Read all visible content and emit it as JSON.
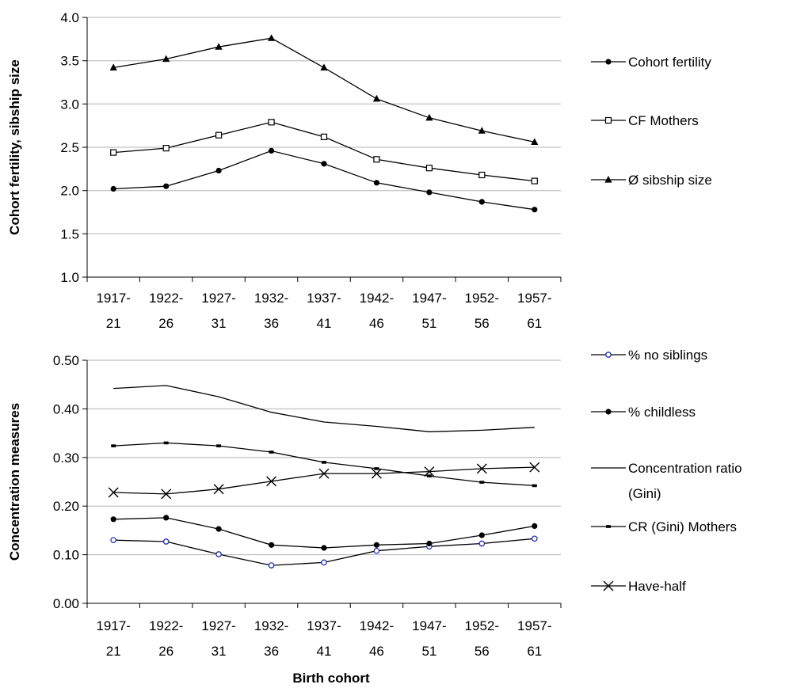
{
  "chart_data": [
    {
      "type": "line",
      "title": "",
      "xlabel": "",
      "ylabel": "Cohort fertility, sibship size",
      "ylim": [
        1.0,
        4.0
      ],
      "yticks": [
        "1.0",
        "1.5",
        "2.0",
        "2.5",
        "3.0",
        "3.5",
        "4.0"
      ],
      "grid": true,
      "legend_position": "right",
      "categories": [
        [
          "1917-",
          "21"
        ],
        [
          "1922-",
          "26"
        ],
        [
          "1927-",
          "31"
        ],
        [
          "1932-",
          "36"
        ],
        [
          "1937-",
          "41"
        ],
        [
          "1942-",
          "46"
        ],
        [
          "1947-",
          "51"
        ],
        [
          "1952-",
          "56"
        ],
        [
          "1957-",
          "61"
        ]
      ],
      "series": [
        {
          "name": "Cohort fertility",
          "marker": "filled-circle",
          "values": [
            2.02,
            2.05,
            2.23,
            2.46,
            2.31,
            2.09,
            1.98,
            1.87,
            1.78
          ]
        },
        {
          "name": "CF Mothers",
          "marker": "open-square",
          "values": [
            2.44,
            2.49,
            2.64,
            2.79,
            2.62,
            2.36,
            2.26,
            2.18,
            2.11
          ]
        },
        {
          "name": "Ø sibship size",
          "marker": "filled-triangle",
          "values": [
            3.42,
            3.52,
            3.66,
            3.76,
            3.42,
            3.06,
            2.84,
            2.69,
            2.56
          ]
        }
      ]
    },
    {
      "type": "line",
      "title": "",
      "xlabel": "Birth cohort",
      "ylabel": "Concentration measures",
      "ylim": [
        0.0,
        0.5
      ],
      "yticks": [
        "0.00",
        "0.10",
        "0.20",
        "0.30",
        "0.40",
        "0.50"
      ],
      "grid": true,
      "legend_position": "right",
      "categories": [
        [
          "1917-",
          "21"
        ],
        [
          "1922-",
          "26"
        ],
        [
          "1927-",
          "31"
        ],
        [
          "1932-",
          "36"
        ],
        [
          "1937-",
          "41"
        ],
        [
          "1942-",
          "46"
        ],
        [
          "1947-",
          "51"
        ],
        [
          "1952-",
          "56"
        ],
        [
          "1957-",
          "61"
        ]
      ],
      "series": [
        {
          "name": [
            "% no siblings"
          ],
          "marker": "open-circle-blue",
          "values": [
            0.13,
            0.127,
            0.101,
            0.078,
            0.084,
            0.108,
            0.117,
            0.123,
            0.133
          ]
        },
        {
          "name": [
            "% childless"
          ],
          "marker": "filled-circle",
          "values": [
            0.173,
            0.176,
            0.153,
            0.12,
            0.114,
            0.12,
            0.123,
            0.14,
            0.159
          ]
        },
        {
          "name": [
            "Concentration ratio",
            "(Gini)"
          ],
          "marker": "none",
          "values": [
            0.442,
            0.448,
            0.425,
            0.393,
            0.373,
            0.364,
            0.353,
            0.356,
            0.362
          ]
        },
        {
          "name": [
            "CR (Gini) Mothers"
          ],
          "marker": "dash",
          "values": [
            0.324,
            0.33,
            0.324,
            0.311,
            0.29,
            0.277,
            0.262,
            0.249,
            0.242
          ]
        },
        {
          "name": [
            "Have-half"
          ],
          "marker": "x",
          "values": [
            0.228,
            0.225,
            0.235,
            0.251,
            0.267,
            0.267,
            0.271,
            0.277,
            0.28
          ]
        }
      ]
    }
  ]
}
